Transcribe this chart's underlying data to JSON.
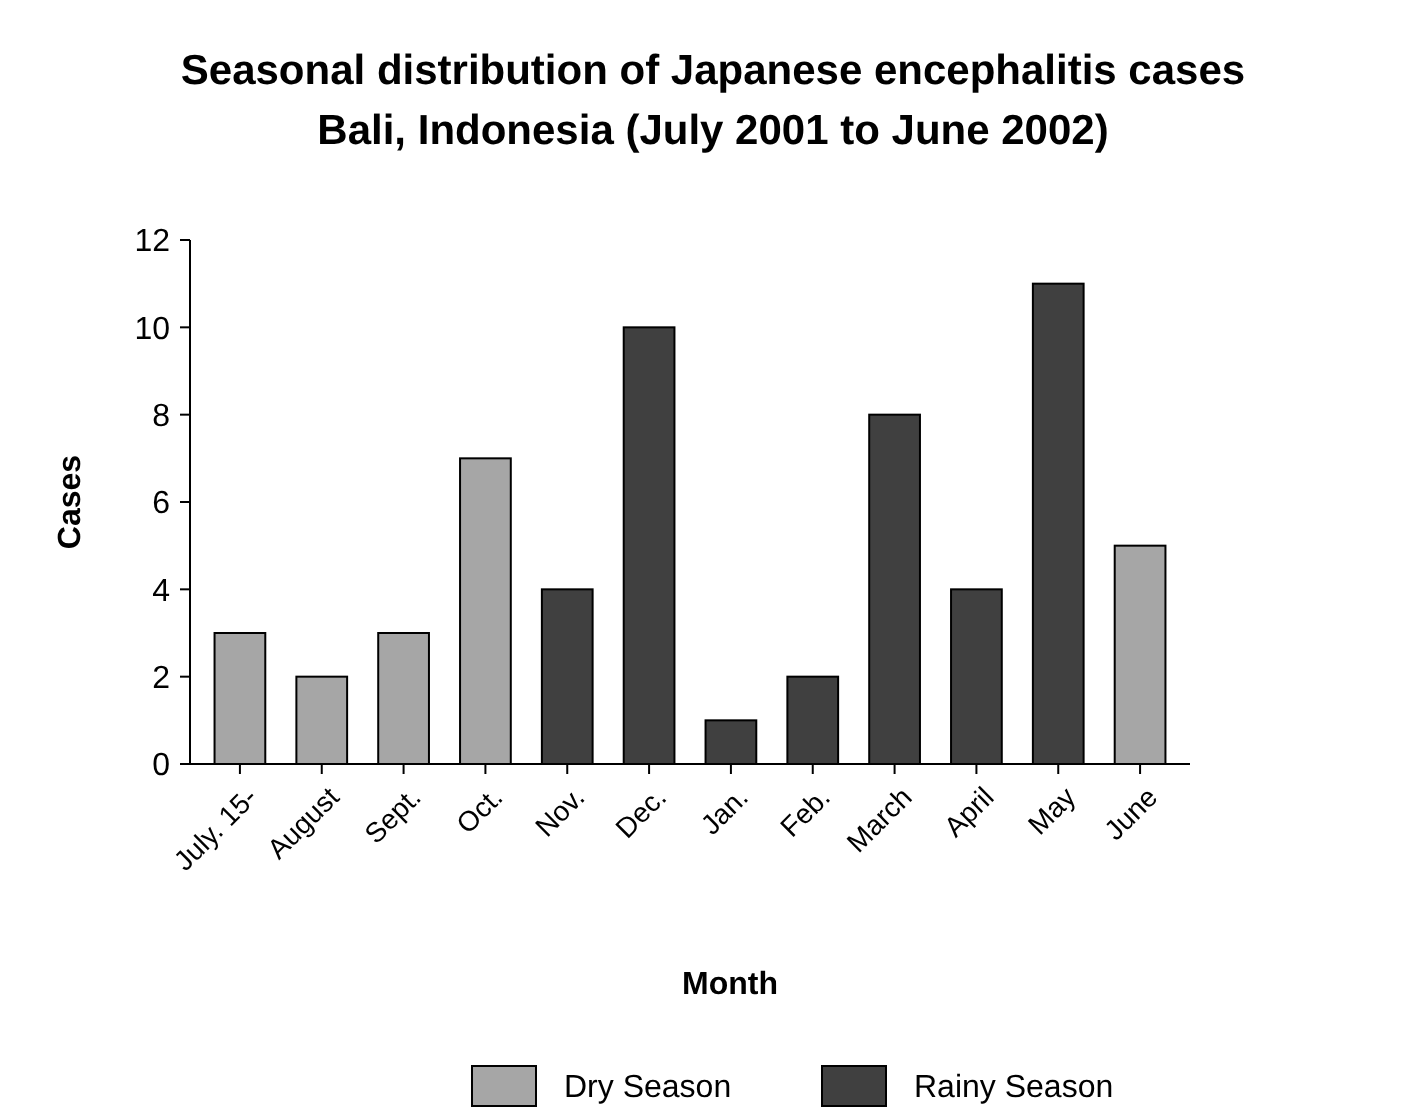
{
  "chart_data": {
    "type": "bar",
    "title": "Seasonal distribution of Japanese encephalitis cases\nBali, Indonesia (July 2001 to June 2002)",
    "xlabel": "Month",
    "ylabel": "Cases",
    "categories": [
      "July. 15-",
      "August",
      "Sept.",
      "Oct.",
      "Nov.",
      "Dec.",
      "Jan.",
      "Feb.",
      "March",
      "April",
      "May",
      "June"
    ],
    "series": [
      {
        "name": "Dry Season",
        "color": "#a6a6a6",
        "values": [
          3,
          2,
          3,
          7,
          null,
          null,
          null,
          null,
          null,
          null,
          null,
          5
        ]
      },
      {
        "name": "Rainy Season",
        "color": "#404040",
        "values": [
          null,
          null,
          null,
          null,
          4,
          10,
          1,
          2,
          8,
          4,
          11,
          null
        ]
      }
    ],
    "ylim": [
      0,
      12
    ],
    "yticks": [
      0,
      2,
      4,
      6,
      8,
      10,
      12
    ],
    "grid": false,
    "legend": "bottom"
  }
}
